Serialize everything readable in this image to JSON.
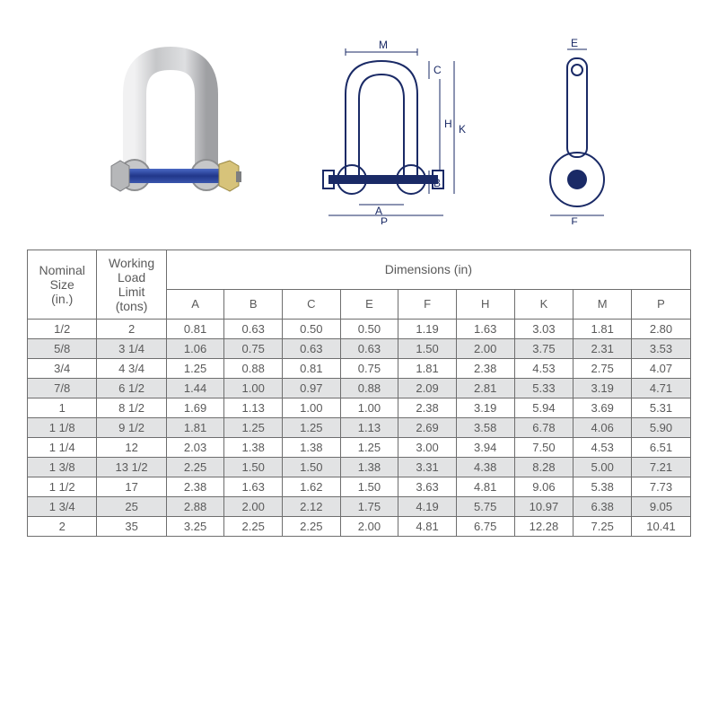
{
  "headers": {
    "nominal": "Nominal\nSize\n(in.)",
    "wll": "Working\nLoad\nLimit\n(tons)",
    "dimensions_group": "Dimensions (in)",
    "dim_cols": [
      "A",
      "B",
      "C",
      "E",
      "F",
      "H",
      "K",
      "M",
      "P"
    ]
  },
  "rows": [
    {
      "nominal": "1/2",
      "wll": "2",
      "dims": [
        "0.81",
        "0.63",
        "0.50",
        "0.50",
        "1.19",
        "1.63",
        "3.03",
        "1.81",
        "2.80"
      ]
    },
    {
      "nominal": "5/8",
      "wll": "3  1/4",
      "dims": [
        "1.06",
        "0.75",
        "0.63",
        "0.63",
        "1.50",
        "2.00",
        "3.75",
        "2.31",
        "3.53"
      ]
    },
    {
      "nominal": "3/4",
      "wll": "4  3/4",
      "dims": [
        "1.25",
        "0.88",
        "0.81",
        "0.75",
        "1.81",
        "2.38",
        "4.53",
        "2.75",
        "4.07"
      ]
    },
    {
      "nominal": "7/8",
      "wll": "6  1/2",
      "dims": [
        "1.44",
        "1.00",
        "0.97",
        "0.88",
        "2.09",
        "2.81",
        "5.33",
        "3.19",
        "4.71"
      ]
    },
    {
      "nominal": "1",
      "wll": "8  1/2",
      "dims": [
        "1.69",
        "1.13",
        "1.00",
        "1.00",
        "2.38",
        "3.19",
        "5.94",
        "3.69",
        "5.31"
      ]
    },
    {
      "nominal": "1 1/8",
      "wll": "9  1/2",
      "dims": [
        "1.81",
        "1.25",
        "1.25",
        "1.13",
        "2.69",
        "3.58",
        "6.78",
        "4.06",
        "5.90"
      ]
    },
    {
      "nominal": "1 1/4",
      "wll": "12",
      "dims": [
        "2.03",
        "1.38",
        "1.38",
        "1.25",
        "3.00",
        "3.94",
        "7.50",
        "4.53",
        "6.51"
      ]
    },
    {
      "nominal": "1 3/8",
      "wll": "13  1/2",
      "dims": [
        "2.25",
        "1.50",
        "1.50",
        "1.38",
        "3.31",
        "4.38",
        "8.28",
        "5.00",
        "7.21"
      ]
    },
    {
      "nominal": "1 1/2",
      "wll": "17",
      "dims": [
        "2.38",
        "1.63",
        "1.62",
        "1.50",
        "3.63",
        "4.81",
        "9.06",
        "5.38",
        "7.73"
      ]
    },
    {
      "nominal": "1 3/4",
      "wll": "25",
      "dims": [
        "2.88",
        "2.00",
        "2.12",
        "1.75",
        "4.19",
        "5.75",
        "10.97",
        "6.38",
        "9.05"
      ]
    },
    {
      "nominal": "2",
      "wll": "35",
      "dims": [
        "3.25",
        "2.25",
        "2.25",
        "2.00",
        "4.81",
        "6.75",
        "12.28",
        "7.25",
        "10.41"
      ]
    }
  ],
  "diagrams": {
    "labels_front": [
      "M",
      "C",
      "H",
      "K",
      "B",
      "A",
      "P"
    ],
    "labels_side": [
      "E",
      "F"
    ]
  },
  "colors": {
    "line": "#1a2a66",
    "steel_light": "#d8d9db",
    "steel_mid": "#b6b7b9",
    "steel_dark": "#7c7d80",
    "pin_blue": "#2b4aa8",
    "nut_gold": "#d7c37a",
    "text": "#5a5a5a",
    "row_alt": "#e2e3e4",
    "border": "#6e6e6e"
  }
}
